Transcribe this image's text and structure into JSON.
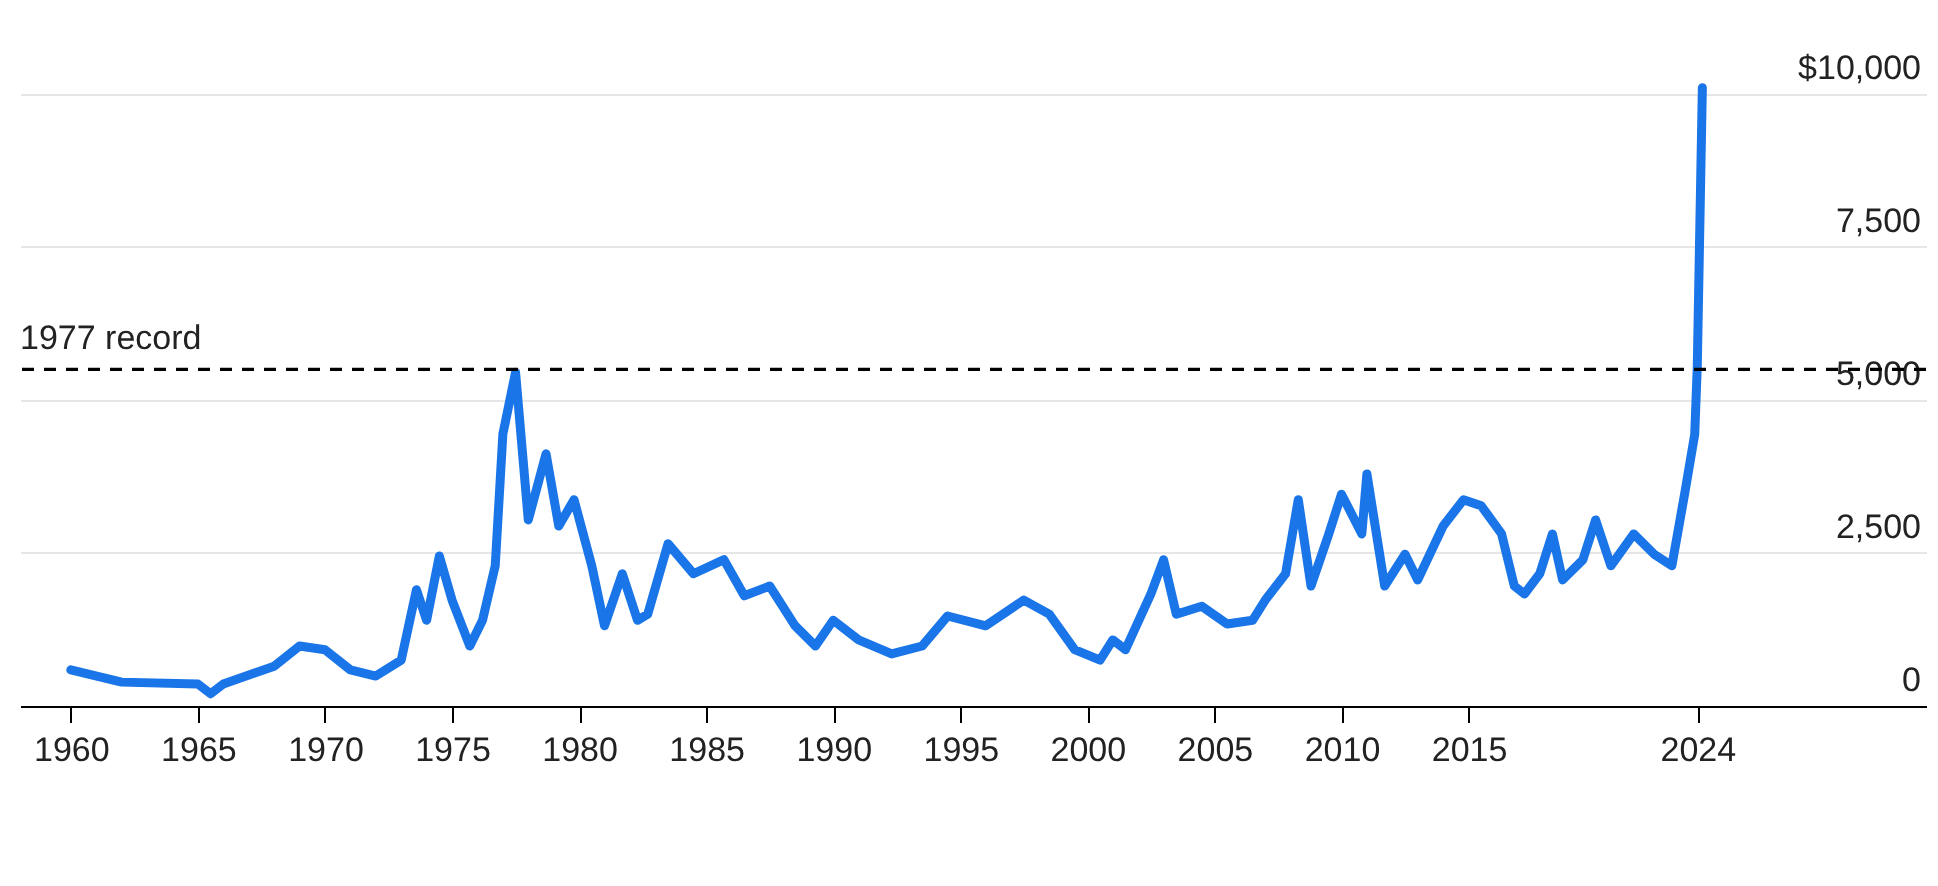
{
  "chart_data": {
    "type": "line",
    "xlim": [
      1958,
      2033
    ],
    "xticks": [
      1960,
      1965,
      1970,
      1975,
      1980,
      1985,
      1990,
      1995,
      2000,
      2005,
      2010,
      2015,
      2024
    ],
    "ylim": [
      0,
      11500
    ],
    "yticks": [
      0,
      {
        "value": 2500,
        "label": "2,500"
      },
      {
        "value": 5000,
        "label": "5,000"
      },
      {
        "value": 7500,
        "label": "7,500"
      },
      {
        "value": 10000,
        "label": "$10,000"
      }
    ],
    "grid": "y",
    "line_style": "solid",
    "ref_lines": [
      {
        "axis": "y",
        "value": 5500,
        "label": "1977 record",
        "color": "#000000",
        "line_style": "dashed"
      }
    ],
    "series": [
      {
        "color": "#1a75e8",
        "x": [
          1960,
          1962,
          1965,
          1965.5,
          1966,
          1968,
          1969,
          1970,
          1971,
          1972,
          1973,
          1973.6,
          1974,
          1974.5,
          1975,
          1975.7,
          1976.2,
          1976.7,
          1977,
          1977.5,
          1978,
          1978.7,
          1979.2,
          1979.8,
          1980.5,
          1981,
          1981.7,
          1982.3,
          1982.7,
          1983.5,
          1984.5,
          1985.7,
          1986.5,
          1987.5,
          1988.5,
          1989.3,
          1990,
          1991,
          1992.3,
          1993.5,
          1994.5,
          1996,
          1997.5,
          1998.5,
          1999.5,
          2000.5,
          2001,
          2001.5,
          2002.5,
          2003,
          2003.5,
          2004.5,
          2005.5,
          2006.5,
          2007,
          2007.8,
          2008.3,
          2008.8,
          2009.5,
          2010,
          2010.8,
          2011,
          2011.7,
          2012.5,
          2013,
          2014,
          2014.8,
          2015.5,
          2016.3,
          2016.8,
          2017.2,
          2017.8,
          2018.3,
          2018.7,
          2019.5,
          2020,
          2020.6,
          2021.5,
          2022.3,
          2023,
          2023.5,
          2023.9,
          2024,
          2024.2
        ],
        "values": [
          590,
          390,
          360,
          200,
          360,
          650,
          980,
          920,
          590,
          490,
          750,
          1900,
          1400,
          2450,
          1730,
          980,
          1400,
          2290,
          4440,
          5450,
          3040,
          4120,
          2940,
          3370,
          2290,
          1310,
          2160,
          1400,
          1500,
          2650,
          2160,
          2390,
          1800,
          1960,
          1310,
          980,
          1400,
          1080,
          850,
          980,
          1470,
          1310,
          1730,
          1500,
          920,
          750,
          1080,
          920,
          1830,
          2390,
          1500,
          1630,
          1340,
          1400,
          1730,
          2160,
          3370,
          1960,
          2810,
          3460,
          2810,
          3790,
          1960,
          2480,
          2060,
          2940,
          3370,
          3270,
          2810,
          1960,
          1830,
          2160,
          2810,
          2060,
          2390,
          3040,
          2290,
          2810,
          2480,
          2290,
          3460,
          4440,
          5550,
          10100
        ]
      }
    ]
  }
}
